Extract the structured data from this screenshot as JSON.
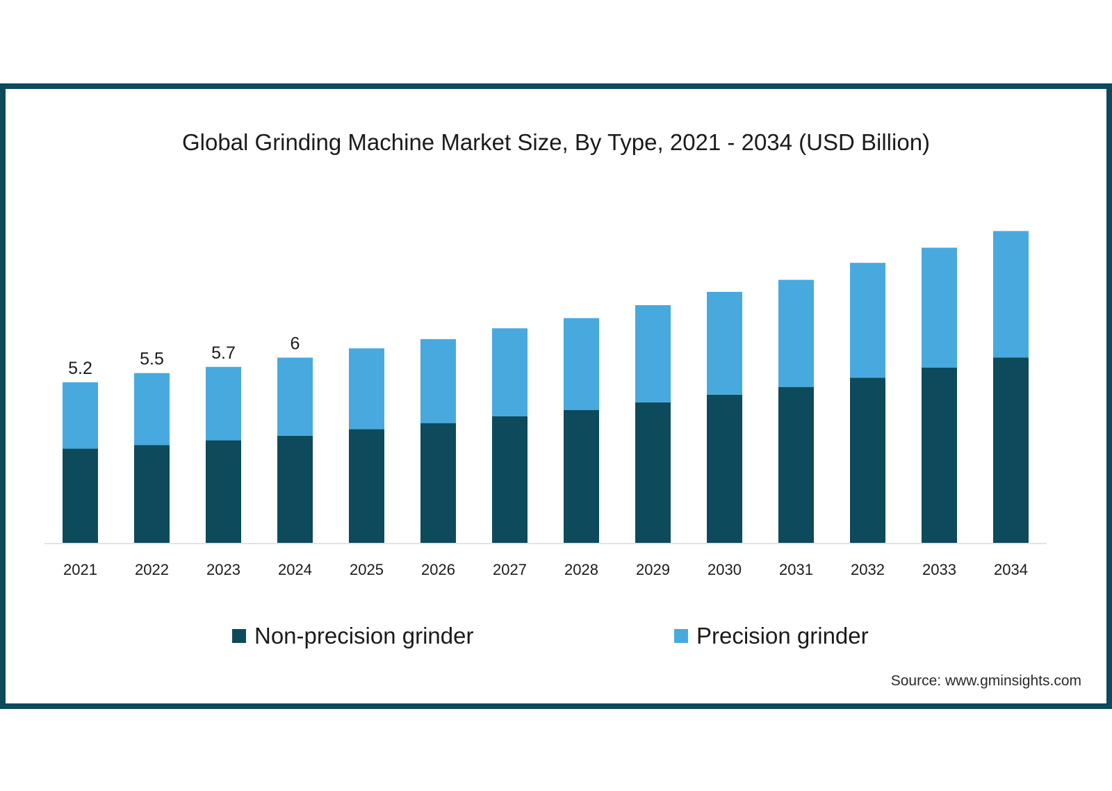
{
  "chart_data": {
    "type": "bar",
    "stacked": true,
    "title": "Global Grinding Machine Market Size, By Type, 2021 - 2034 (USD Billion)",
    "xlabel": "",
    "ylabel": "",
    "categories": [
      "2021",
      "2022",
      "2023",
      "2024",
      "2025",
      "2026",
      "2027",
      "2028",
      "2029",
      "2030",
      "2031",
      "2032",
      "2033",
      "2034"
    ],
    "series": [
      {
        "name": "Non-precision grinder",
        "color": "#0d4a5c",
        "values": [
          3.05,
          3.17,
          3.32,
          3.47,
          3.68,
          3.88,
          4.1,
          4.3,
          4.55,
          4.8,
          5.05,
          5.35,
          5.68,
          6.0
        ]
      },
      {
        "name": "Precision grinder",
        "color": "#48a9df",
        "values": [
          2.15,
          2.33,
          2.38,
          2.53,
          2.62,
          2.72,
          2.85,
          2.98,
          3.15,
          3.33,
          3.47,
          3.72,
          3.88,
          4.1
        ]
      }
    ],
    "data_labels": [
      "5.2",
      "5.5",
      "5.7",
      "6",
      "",
      "",
      "",
      "",
      "",
      "",
      "",
      "",
      "",
      ""
    ],
    "ylim": [
      0,
      12
    ],
    "legend_position": "bottom",
    "grid": false
  },
  "legend": {
    "items": [
      {
        "label": "Non-precision grinder",
        "color": "#0d4a5c"
      },
      {
        "label": "Precision grinder",
        "color": "#48a9df"
      }
    ]
  },
  "source": "Source: www.gminsights.com",
  "colors": {
    "frame": "#0d4a5c",
    "baseline": "#e3e3e3"
  }
}
